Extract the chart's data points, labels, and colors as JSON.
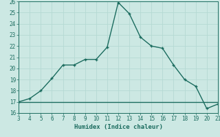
{
  "x": [
    3,
    4,
    5,
    6,
    7,
    8,
    9,
    10,
    11,
    12,
    13,
    14,
    15,
    16,
    17,
    18,
    19,
    20,
    21
  ],
  "y_curve": [
    17.0,
    17.3,
    18.0,
    19.1,
    20.3,
    20.3,
    20.8,
    20.8,
    21.9,
    25.9,
    24.9,
    22.8,
    22.0,
    21.8,
    20.3,
    19.0,
    18.4,
    16.4,
    16.8
  ],
  "y_flat": 17.0,
  "xlim": [
    3,
    21
  ],
  "ylim": [
    16,
    26
  ],
  "xticks": [
    3,
    4,
    5,
    6,
    7,
    8,
    9,
    10,
    11,
    12,
    13,
    14,
    15,
    16,
    17,
    18,
    19,
    20,
    21
  ],
  "yticks": [
    16,
    17,
    18,
    19,
    20,
    21,
    22,
    23,
    24,
    25,
    26
  ],
  "xlabel": "Humidex (Indice chaleur)",
  "line_color": "#1a6b5e",
  "bg_color": "#cce8e3",
  "grid_color": "#b5d9d3",
  "font_family": "monospace",
  "tick_fontsize": 5.5,
  "xlabel_fontsize": 6.5
}
